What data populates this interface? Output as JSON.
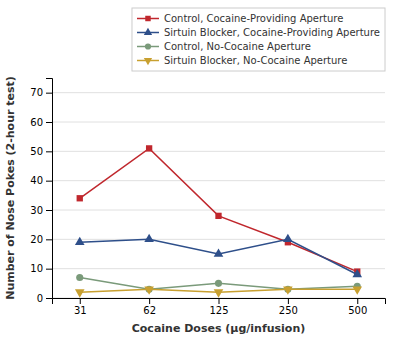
{
  "chart_data": {
    "type": "line",
    "categories": [
      "31",
      "62",
      "125",
      "250",
      "500"
    ],
    "series": [
      {
        "name": "Control, Cocaine-Providing Aperture",
        "color": "#c0272d",
        "marker": "square",
        "values": [
          34,
          51,
          28,
          19,
          9
        ]
      },
      {
        "name": "Sirtuin Blocker, Cocaine-Providing Aperture",
        "color": "#2e4f8a",
        "marker": "triangle-up",
        "values": [
          19,
          20,
          15,
          20,
          8
        ]
      },
      {
        "name": "Control, No-Cocaine Aperture",
        "color": "#7a9a7a",
        "marker": "circle",
        "values": [
          7,
          3,
          5,
          3,
          4
        ]
      },
      {
        "name": "Sirtuin Blocker, No-Cocaine Aperture",
        "color": "#c8a030",
        "marker": "triangle-down",
        "values": [
          2,
          3,
          2,
          3,
          3
        ]
      }
    ],
    "xlabel": "Cocaine Doses (μg/infusion)",
    "ylabel": "Number of Nose Pokes (2-hour test)",
    "ylim": [
      0,
      75
    ],
    "yticks": [
      0,
      10,
      20,
      30,
      40,
      50,
      60,
      70
    ],
    "grid": true,
    "legend": "upper right"
  }
}
